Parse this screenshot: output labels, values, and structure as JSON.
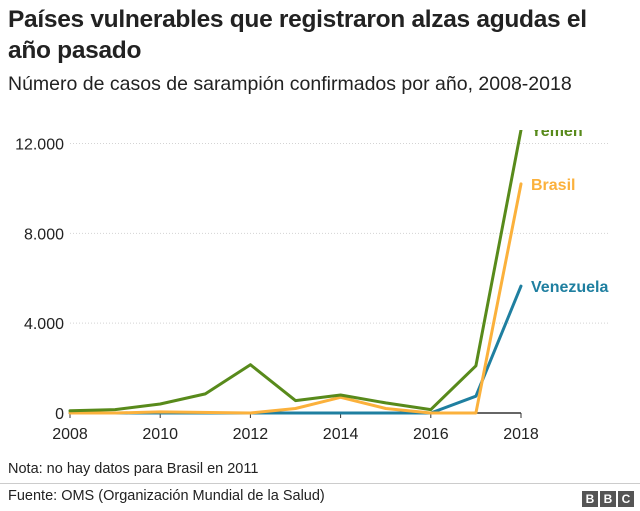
{
  "title": "Países vulnerables que registraron alzas agudas el año pasado",
  "subtitle": "Número de casos de sarampión confirmados por año, 2008-2018",
  "note": "Nota: no hay datos para Brasil en 2011",
  "source": "Fuente: OMS (Organización Mundial de la Salud)",
  "logo": [
    "B",
    "B",
    "C"
  ],
  "chart_data": {
    "type": "line",
    "x": [
      2008,
      2009,
      2010,
      2011,
      2012,
      2013,
      2014,
      2015,
      2016,
      2017,
      2018
    ],
    "x_ticks": [
      2008,
      2010,
      2012,
      2014,
      2016,
      2018
    ],
    "x_tick_labels": [
      "2008",
      "2010",
      "2012",
      "2014",
      "2016",
      "2018"
    ],
    "y_ticks": [
      0,
      4000,
      8000,
      12000
    ],
    "y_tick_labels": [
      "0",
      "4.000",
      "8.000",
      "12.000"
    ],
    "ylim": [
      0,
      12600
    ],
    "xlim": [
      2008,
      2018
    ],
    "grid": true,
    "series": [
      {
        "name": "Yemen",
        "color": "#588a1b",
        "values": [
          100,
          150,
          400,
          850,
          2150,
          550,
          800,
          450,
          150,
          2100,
          12600
        ]
      },
      {
        "name": "Brasil",
        "color": "#fbb13c",
        "values": [
          0,
          0,
          50,
          null,
          0,
          200,
          700,
          200,
          0,
          0,
          10200
        ]
      },
      {
        "name": "Venezuela",
        "color": "#1f7fa0",
        "values": [
          0,
          0,
          0,
          0,
          0,
          0,
          0,
          0,
          0,
          750,
          5650
        ]
      }
    ]
  }
}
